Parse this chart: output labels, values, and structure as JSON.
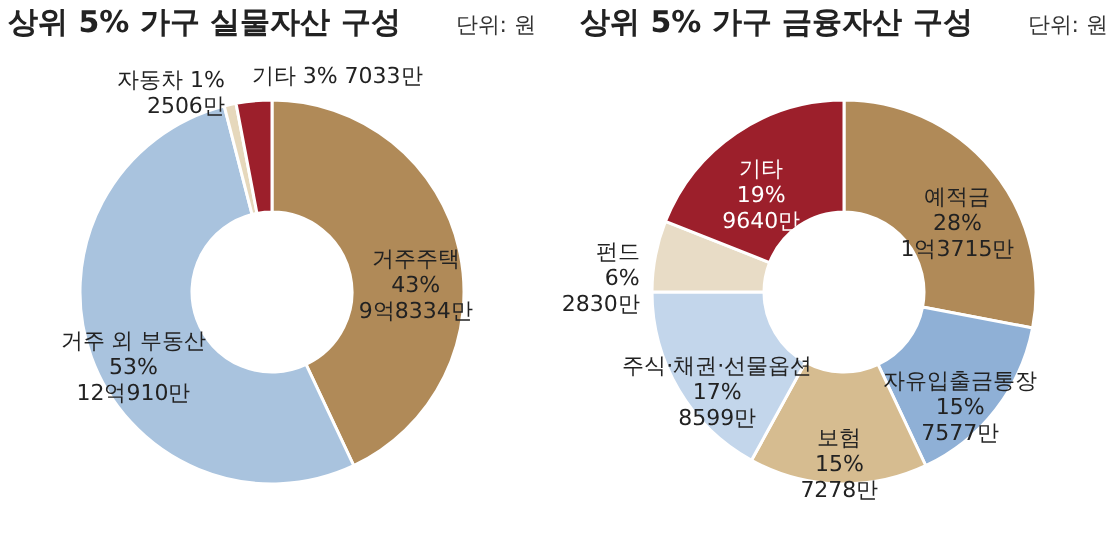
{
  "chart_data": [
    {
      "type": "donut",
      "title": "상위 5% 가구 실물자산 구성",
      "annotations": [
        "단위: 원"
      ],
      "categories": [
        "거주주택",
        "거주 외 부동산",
        "자동차",
        "기타"
      ],
      "values": [
        43,
        53,
        1,
        3
      ],
      "colors": [
        "#b08a58",
        "#a9c3de",
        "#e6d8bc",
        "#9c1f2b"
      ],
      "value_labels": [
        "43%\n9억8334만",
        "53%\n12억910만",
        "1%\n2506만",
        "3%\n7033만"
      ]
    },
    {
      "type": "donut",
      "title": "상위 5% 가구 금융자산 구성",
      "annotations": [
        "단위: 원"
      ],
      "categories": [
        "예적금",
        "자유입출금통장",
        "보험",
        "주식·채권·선물옵션",
        "펀드",
        "기타"
      ],
      "values": [
        28,
        15,
        15,
        17,
        6,
        19
      ],
      "colors": [
        "#b08a58",
        "#8fb0d6",
        "#d6bc90",
        "#c3d6eb",
        "#e8dcc6",
        "#9c1f2b"
      ],
      "value_labels": [
        "28%\n1억3715만",
        "15%\n7577만",
        "15%\n7278만",
        "17%\n8599만",
        "6%\n2830만",
        "19%\n9640만"
      ]
    }
  ]
}
